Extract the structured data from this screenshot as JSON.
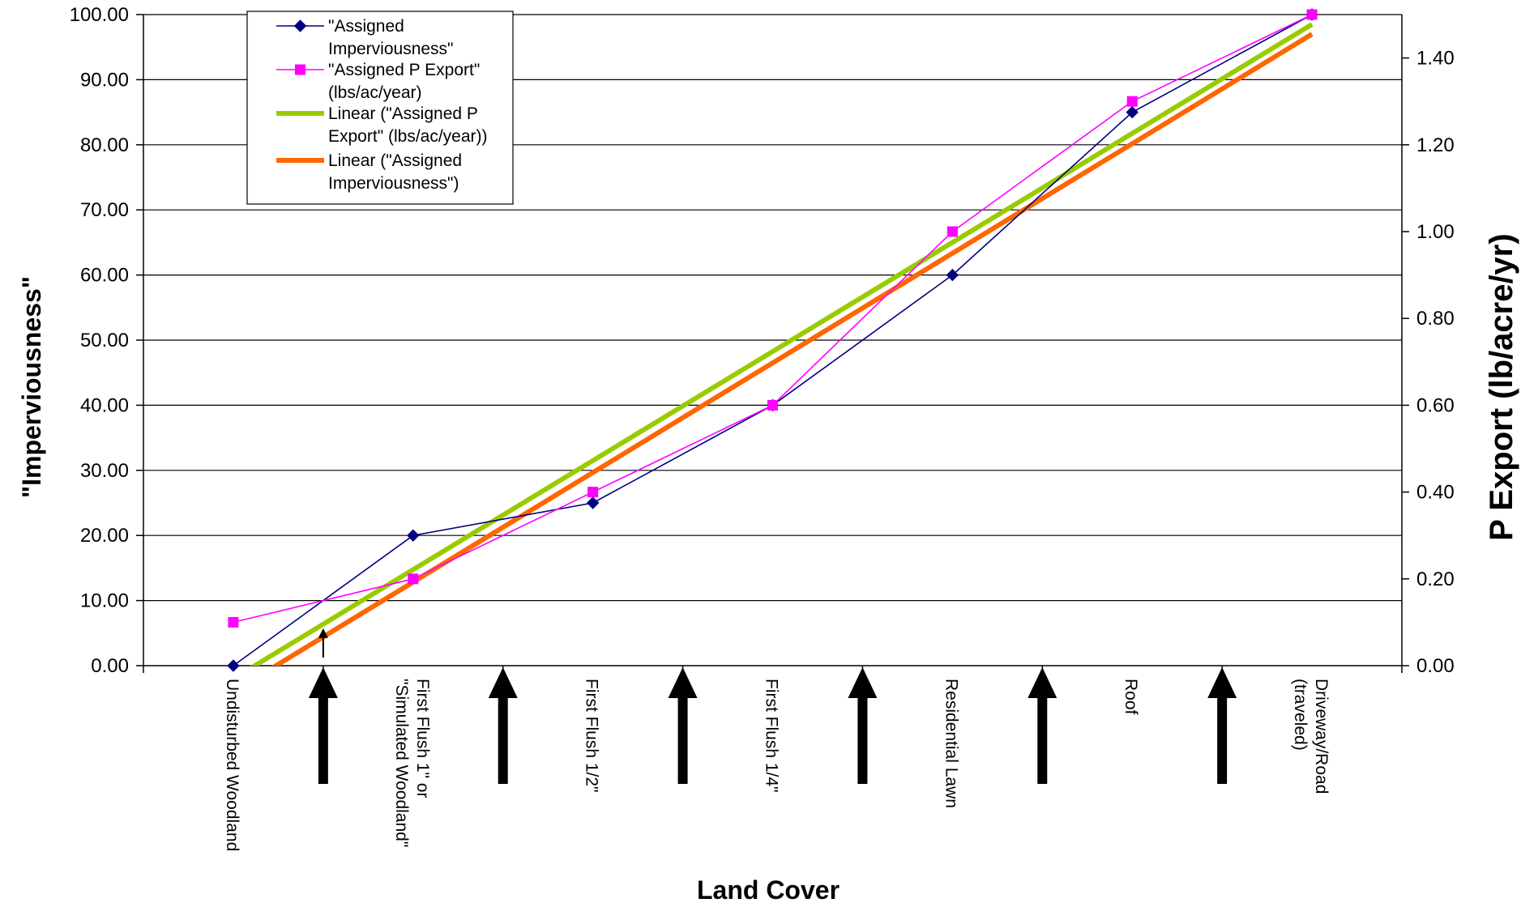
{
  "chart_data": {
    "type": "line",
    "title": "",
    "xlabel": "Land Cover",
    "ylabel_left": "\"Imperviousness\"",
    "ylabel_right": "P Export (lb/acre/yr)",
    "categories": [
      [
        "Undisturbed Woodland"
      ],
      [
        "First Flush 1\" or",
        "\"Simulated Woodland\""
      ],
      [
        "First Flush 1/2\""
      ],
      [
        "First Flush 1/4\""
      ],
      [
        "Residential Lawn"
      ],
      [
        "Roof"
      ],
      [
        "Driveway/Road",
        "(traveled)"
      ]
    ],
    "y_left": {
      "min": 0,
      "max": 100,
      "ticks": [
        "0.00",
        "10.00",
        "20.00",
        "30.00",
        "40.00",
        "50.00",
        "60.00",
        "70.00",
        "80.00",
        "90.00",
        "100.00"
      ]
    },
    "y_right": {
      "min": 0,
      "max": 1.5,
      "ticks": [
        "0.00",
        "0.20",
        "0.40",
        "0.60",
        "0.80",
        "1.00",
        "1.20",
        "1.40"
      ]
    },
    "grid": true,
    "legend_position": "top-left",
    "series": [
      {
        "name": "\"Assigned Imperviousness\"",
        "axis": "left",
        "color": "#000080",
        "marker": "diamond",
        "values": [
          0,
          20,
          25,
          40,
          60,
          85,
          100
        ]
      },
      {
        "name": "\"Assigned P Export\" (lbs/ac/year)",
        "axis": "right",
        "color": "#ff00ff",
        "marker": "square",
        "values": [
          0.1,
          0.2,
          0.4,
          0.6,
          1.0,
          1.3,
          1.5
        ]
      }
    ],
    "trendlines": [
      {
        "name": "Linear (\"Assigned P Export\" (lbs/ac/year))",
        "color": "#99cc00",
        "start": {
          "x": 0,
          "y": -2
        },
        "end": {
          "x": 6,
          "y": 98.5
        }
      },
      {
        "name": "Linear (\"Assigned Imperviousness\")",
        "color": "#ff6600",
        "start": {
          "x": 0,
          "y": -4
        },
        "end": {
          "x": 6,
          "y": 97
        }
      }
    ],
    "legend": [
      {
        "lines": [
          "\"Assigned",
          "Imperviousness\""
        ],
        "series": 0
      },
      {
        "lines": [
          "\"Assigned P Export\"",
          "(lbs/ac/year)"
        ],
        "series": 1
      },
      {
        "lines": [
          "Linear (\"Assigned P",
          "Export\" (lbs/ac/year))"
        ],
        "trend": 0
      },
      {
        "lines": [
          "Linear (\"Assigned",
          "Imperviousness\")"
        ],
        "trend": 1
      }
    ],
    "arrows": [
      0.5,
      1.5,
      2.5,
      3.5,
      4.5,
      5.5
    ],
    "small_arrow": {
      "x": 0.5,
      "y": 6
    }
  }
}
